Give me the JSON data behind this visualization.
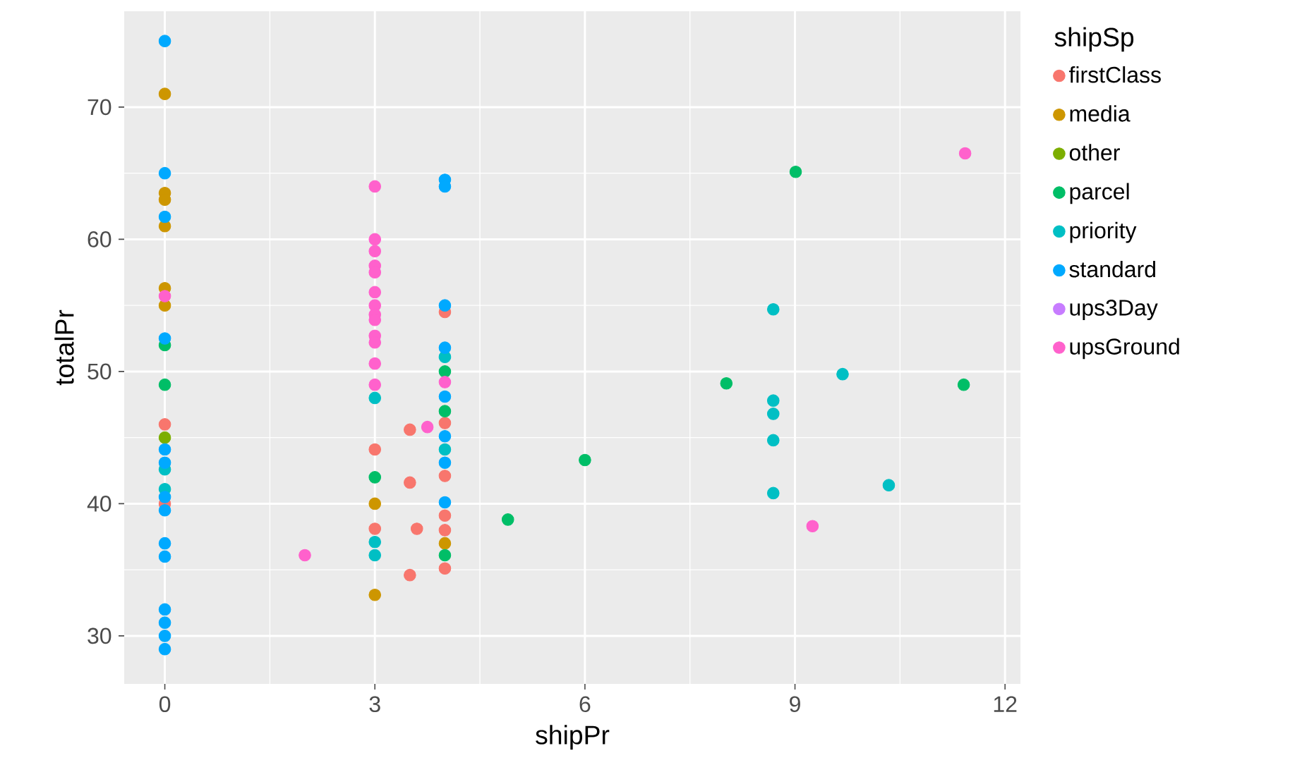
{
  "chart_data": {
    "type": "scatter",
    "xlabel": "shipPr",
    "ylabel": "totalPr",
    "legend_title": "shipSp",
    "xlim": [
      -0.58,
      12.22
    ],
    "ylim": [
      26.37,
      77.25
    ],
    "xticks": [
      0,
      3,
      6,
      9,
      12
    ],
    "yticks": [
      30,
      40,
      50,
      60,
      70
    ],
    "grid": true,
    "legend": "right",
    "marker": "circle",
    "series": [
      {
        "name": "firstClass",
        "color": "#F8766D",
        "x": [
          0,
          0,
          3,
          3,
          3.5,
          3.5,
          3.5,
          3.6,
          4,
          4,
          4,
          4,
          4,
          4
        ],
        "values": [
          46,
          40,
          44.1,
          38.1,
          45.6,
          41.6,
          34.6,
          38.1,
          54.5,
          46.1,
          42.1,
          39.1,
          38,
          35.1
        ]
      },
      {
        "name": "media",
        "color": "#CD9600",
        "x": [
          0,
          0,
          0,
          0,
          0,
          0,
          3,
          3,
          4
        ],
        "values": [
          71,
          63.5,
          63,
          61,
          56.3,
          55,
          40,
          33.1,
          37
        ]
      },
      {
        "name": "other",
        "color": "#7CAE00",
        "x": [
          0
        ],
        "values": [
          45
        ]
      },
      {
        "name": "parcel",
        "color": "#00BE67",
        "x": [
          0,
          0,
          3,
          4,
          4,
          4,
          4.9,
          6,
          8.02,
          9.01,
          11.41
        ],
        "values": [
          52,
          49,
          42,
          50,
          47,
          36.1,
          38.8,
          43.3,
          49.1,
          65.1,
          49
        ]
      },
      {
        "name": "priority",
        "color": "#00BFC4",
        "x": [
          0,
          0,
          3,
          3,
          3,
          4,
          4,
          8.69,
          8.69,
          8.69,
          8.69,
          8.69,
          9.68,
          10.34
        ],
        "values": [
          42.6,
          41.1,
          48,
          37.1,
          36.1,
          51.1,
          44.1,
          54.7,
          47.8,
          46.8,
          44.8,
          40.8,
          49.8,
          41.4
        ]
      },
      {
        "name": "standard",
        "color": "#00A9FF",
        "x": [
          0,
          0,
          0,
          0,
          0,
          0,
          0,
          0,
          0,
          0,
          0,
          0,
          0,
          0,
          4,
          4,
          4,
          4,
          4,
          4,
          4,
          4
        ],
        "values": [
          75,
          65,
          61.7,
          52.5,
          44.1,
          43.1,
          40.5,
          39.5,
          37,
          36,
          32,
          31,
          30,
          29,
          64.5,
          64,
          55,
          51.8,
          48.1,
          45.1,
          43.1,
          40.1
        ]
      },
      {
        "name": "ups3Day",
        "color": "#C77CFF"
      },
      {
        "name": "upsGround",
        "color": "#FF61CC",
        "x": [
          0,
          2,
          3,
          3,
          3,
          3,
          3,
          3,
          3,
          3,
          3,
          3,
          3,
          3,
          3,
          3.75,
          4,
          9.25,
          11.43
        ],
        "values": [
          55.7,
          36.1,
          64,
          60,
          59.1,
          58,
          57.5,
          56,
          55,
          54.3,
          53.9,
          52.7,
          52.2,
          50.6,
          49,
          45.8,
          49.2,
          38.3,
          66.5
        ]
      }
    ]
  }
}
